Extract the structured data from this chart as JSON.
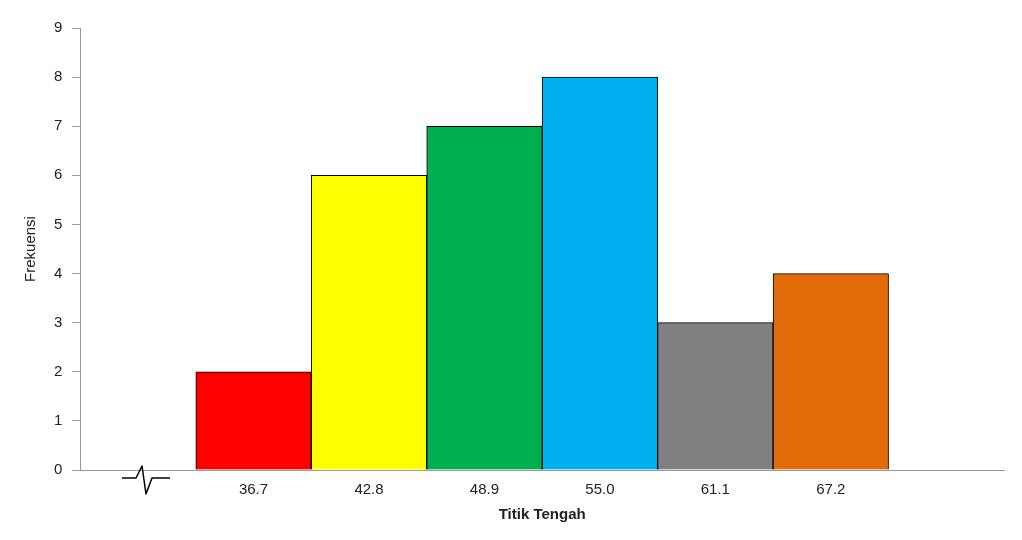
{
  "chart_data": {
    "type": "bar",
    "xlabel": "Titik Tengah",
    "ylabel": "Frekuensi",
    "categories": [
      null,
      "36.7",
      "42.8",
      "48.9",
      "55.0",
      "61.1",
      "67.2",
      null
    ],
    "values": [
      null,
      2,
      6,
      7,
      8,
      3,
      4,
      null
    ],
    "colors": [
      null,
      "#ff0000",
      "#ffff00",
      "#00b050",
      "#00b0f0",
      "#808080",
      "#e26b0a",
      null
    ],
    "ylim": [
      0,
      9
    ],
    "yticks": [
      0,
      1,
      2,
      3,
      4,
      5,
      6,
      7,
      8,
      9
    ],
    "grid": false,
    "legend": false
  }
}
